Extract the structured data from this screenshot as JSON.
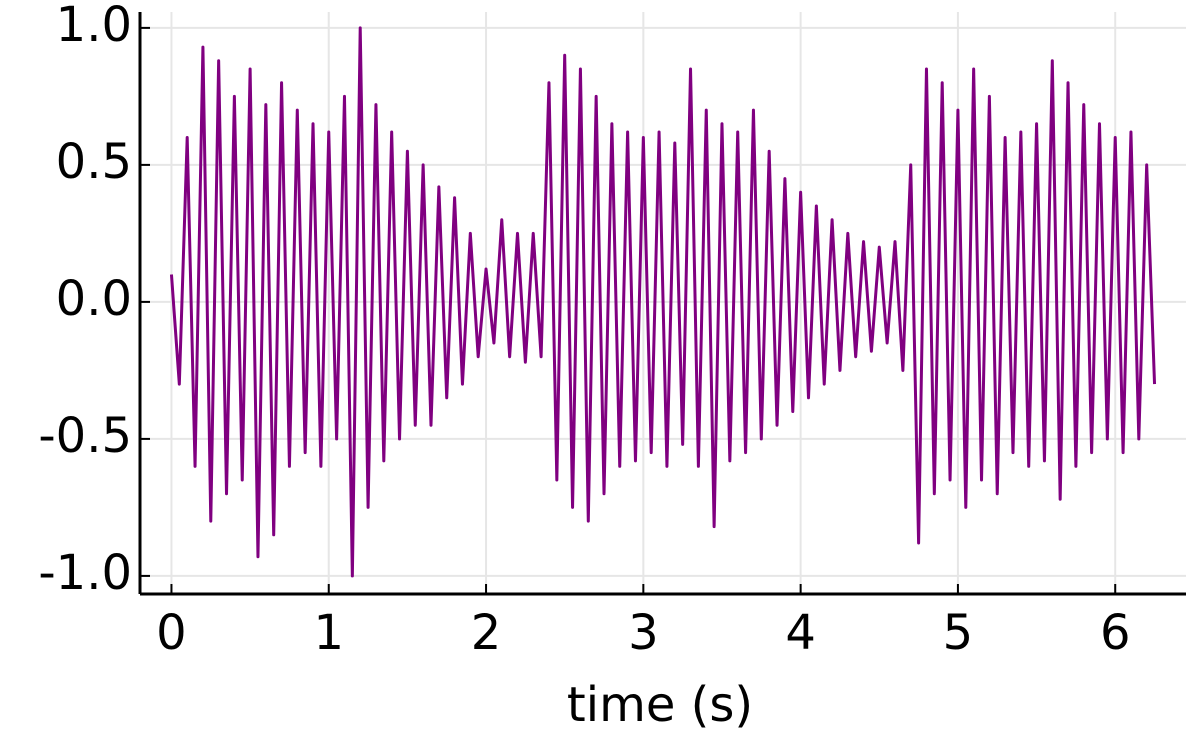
{
  "chart_data": {
    "type": "line",
    "xlabel": "time (s)",
    "color": "#800080",
    "grid": true,
    "xlim": [
      -0.2,
      6.45
    ],
    "ylim": [
      -1.066,
      1.058
    ],
    "xticks": [
      0,
      1,
      2,
      3,
      4,
      5,
      6
    ],
    "yticks": [
      {
        "value": 1,
        "label": "1.0"
      },
      {
        "value": 0.5,
        "label": "0.5"
      },
      {
        "value": 0,
        "label": "0.0"
      },
      {
        "value": -0.5,
        "label": "-0.5"
      },
      {
        "value": -1,
        "label": "-1.0"
      }
    ],
    "x": [
      0,
      0.05,
      0.1,
      0.15,
      0.2,
      0.25,
      0.3,
      0.35,
      0.4,
      0.45,
      0.5,
      0.55,
      0.6,
      0.65,
      0.7,
      0.75,
      0.8,
      0.85,
      0.9,
      0.95,
      1,
      1.05,
      1.1,
      1.15,
      1.2,
      1.25,
      1.3,
      1.35,
      1.4,
      1.45,
      1.5,
      1.55,
      1.6,
      1.65,
      1.7,
      1.75,
      1.8,
      1.85,
      1.9,
      1.95,
      2,
      2.05,
      2.1,
      2.15,
      2.2,
      2.25,
      2.3,
      2.35,
      2.4,
      2.45,
      2.5,
      2.55,
      2.6,
      2.65,
      2.7,
      2.75,
      2.8,
      2.85,
      2.9,
      2.95,
      3,
      3.05,
      3.1,
      3.15,
      3.2,
      3.25,
      3.3,
      3.35,
      3.4,
      3.45,
      3.5,
      3.55,
      3.6,
      3.65,
      3.7,
      3.75,
      3.8,
      3.85,
      3.9,
      3.95,
      4,
      4.05,
      4.1,
      4.15,
      4.2,
      4.25,
      4.3,
      4.35,
      4.4,
      4.45,
      4.5,
      4.55,
      4.6,
      4.65,
      4.7,
      4.75,
      4.8,
      4.85,
      4.9,
      4.95,
      5,
      5.05,
      5.1,
      5.15,
      5.2,
      5.25,
      5.3,
      5.35,
      5.4,
      5.45,
      5.5,
      5.55,
      5.6,
      5.65,
      5.7,
      5.75,
      5.8,
      5.85,
      5.9,
      5.95,
      6,
      6.05,
      6.1,
      6.15,
      6.2,
      6.25
    ],
    "values": [
      0.1,
      -0.3,
      0.6,
      -0.6,
      0.93,
      -0.8,
      0.88,
      -0.7,
      0.75,
      -0.65,
      0.85,
      -0.93,
      0.72,
      -0.85,
      0.8,
      -0.6,
      0.7,
      -0.55,
      0.65,
      -0.6,
      0.62,
      -0.5,
      0.75,
      -1.0,
      1.0,
      -0.75,
      0.72,
      -0.58,
      0.62,
      -0.5,
      0.55,
      -0.45,
      0.5,
      -0.45,
      0.42,
      -0.35,
      0.38,
      -0.3,
      0.25,
      -0.2,
      0.12,
      -0.15,
      0.3,
      -0.2,
      0.25,
      -0.22,
      0.25,
      -0.2,
      0.8,
      -0.65,
      0.9,
      -0.75,
      0.85,
      -0.8,
      0.75,
      -0.7,
      0.65,
      -0.6,
      0.62,
      -0.58,
      0.6,
      -0.55,
      0.62,
      -0.6,
      0.58,
      -0.52,
      0.85,
      -0.6,
      0.7,
      -0.82,
      0.65,
      -0.58,
      0.62,
      -0.55,
      0.7,
      -0.5,
      0.55,
      -0.45,
      0.45,
      -0.4,
      0.4,
      -0.35,
      0.35,
      -0.3,
      0.3,
      -0.25,
      0.25,
      -0.2,
      0.22,
      -0.18,
      0.2,
      -0.15,
      0.22,
      -0.25,
      0.5,
      -0.88,
      0.85,
      -0.7,
      0.8,
      -0.65,
      0.7,
      -0.75,
      0.85,
      -0.65,
      0.75,
      -0.7,
      0.6,
      -0.55,
      0.62,
      -0.6,
      0.65,
      -0.58,
      0.88,
      -0.72,
      0.8,
      -0.6,
      0.72,
      -0.55,
      0.65,
      -0.5,
      0.6,
      -0.55,
      0.62,
      -0.5,
      0.5,
      -0.3
    ]
  }
}
